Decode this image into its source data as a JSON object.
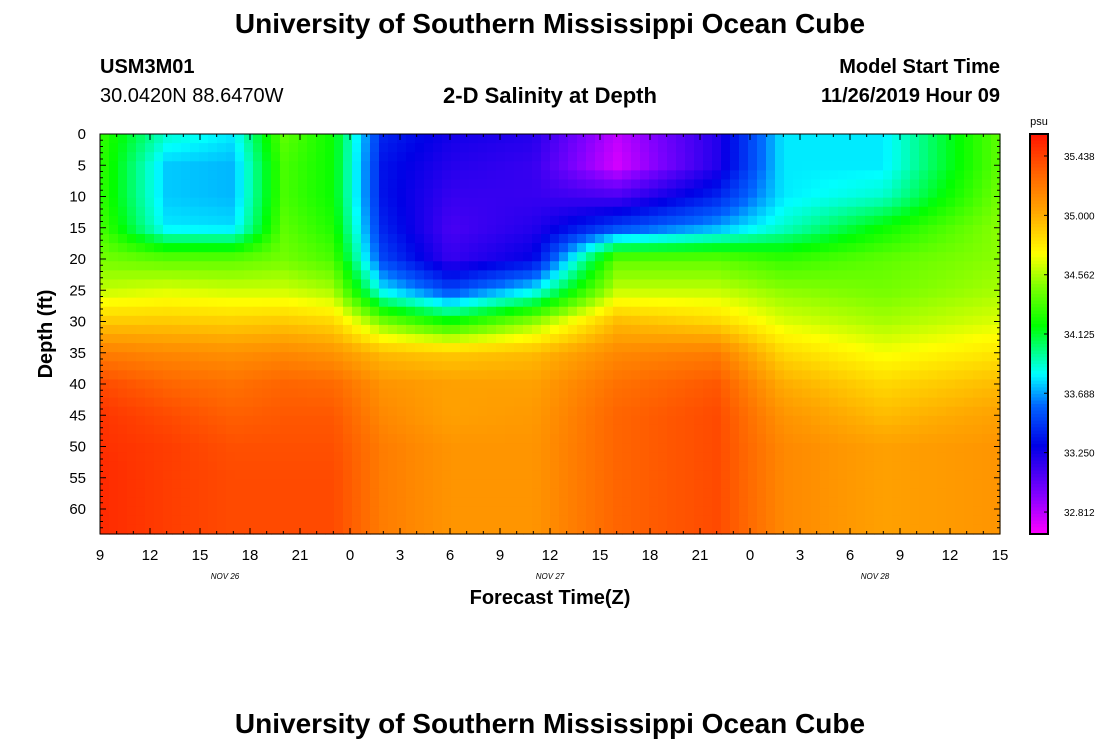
{
  "page": {
    "title_top": "University of Southern Mississippi Ocean Cube",
    "title_bottom": "University of Southern Mississippi Ocean Cube",
    "station_id": "USM3M01",
    "station_coords": "30.0420N 88.6470W",
    "subtitle": "2-D Salinity at Depth",
    "model_start_label": "Model Start Time",
    "model_start_value": "11/26/2019 Hour 09"
  },
  "chart_data": {
    "type": "heatmap",
    "title": "2-D Salinity at Depth",
    "xlabel": "Forecast Time(Z)",
    "ylabel": "Depth (ft)",
    "x_range_hours": [
      0,
      54
    ],
    "y_range_ft": [
      0,
      64
    ],
    "y_inverted": true,
    "x_tick_labels": [
      "9",
      "12",
      "15",
      "18",
      "21",
      "0",
      "3",
      "6",
      "9",
      "12",
      "15",
      "18",
      "21",
      "0",
      "3",
      "6",
      "9",
      "12",
      "15"
    ],
    "y_tick_labels": [
      "0",
      "5",
      "10",
      "15",
      "20",
      "25",
      "30",
      "35",
      "40",
      "45",
      "50",
      "55",
      "60"
    ],
    "date_labels": [
      {
        "text": "NOV 26",
        "hour": 7.5
      },
      {
        "text": "NOV 27",
        "hour": 27
      },
      {
        "text": "NOV 28",
        "hour": 46.5
      }
    ],
    "colorbar": {
      "unit": "psu",
      "min": 32.65,
      "max": 35.6,
      "tick_labels": [
        "35.438",
        "35.000",
        "34.562",
        "34.125",
        "33.688",
        "33.250",
        "32.812"
      ],
      "tick_values": [
        35.438,
        35.0,
        34.562,
        34.125,
        33.688,
        33.25,
        32.812
      ]
    },
    "depths_ft": [
      0,
      5,
      10,
      15,
      20,
      25,
      30,
      35,
      40,
      45,
      50,
      55,
      60,
      64
    ],
    "columns": [
      {
        "hour": 0,
        "salinity": [
          34.3,
          34.3,
          34.3,
          34.35,
          34.45,
          34.6,
          34.9,
          35.2,
          35.4,
          35.48,
          35.5,
          35.52,
          35.52,
          35.52
        ]
      },
      {
        "hour": 4,
        "salinity": [
          33.9,
          33.75,
          33.75,
          33.8,
          34.4,
          34.65,
          34.9,
          35.15,
          35.3,
          35.4,
          35.45,
          35.45,
          35.45,
          35.45
        ]
      },
      {
        "hour": 8,
        "salinity": [
          33.8,
          33.72,
          33.72,
          33.78,
          34.4,
          34.62,
          34.88,
          35.12,
          35.25,
          35.32,
          35.38,
          35.4,
          35.4,
          35.4
        ]
      },
      {
        "hour": 11,
        "salinity": [
          34.4,
          34.35,
          34.35,
          34.4,
          34.45,
          34.62,
          34.9,
          35.15,
          35.3,
          35.35,
          35.38,
          35.4,
          35.4,
          35.4
        ]
      },
      {
        "hour": 14,
        "salinity": [
          34.2,
          34.2,
          34.2,
          34.25,
          34.35,
          34.55,
          34.85,
          35.1,
          35.28,
          35.35,
          35.38,
          35.4,
          35.4,
          35.4
        ]
      },
      {
        "hour": 17,
        "salinity": [
          33.4,
          33.35,
          33.35,
          33.4,
          33.5,
          33.8,
          34.45,
          34.95,
          35.1,
          35.15,
          35.2,
          35.2,
          35.2,
          35.2
        ]
      },
      {
        "hour": 21,
        "salinity": [
          33.25,
          33.2,
          33.15,
          33.1,
          33.15,
          33.5,
          34.2,
          34.9,
          35.05,
          35.05,
          35.1,
          35.1,
          35.1,
          35.1
        ]
      },
      {
        "hour": 26,
        "salinity": [
          33.2,
          33.15,
          33.15,
          33.2,
          33.3,
          33.8,
          34.5,
          34.95,
          35.05,
          35.08,
          35.1,
          35.1,
          35.1,
          35.1
        ]
      },
      {
        "hour": 31,
        "salinity": [
          32.8,
          32.75,
          33.1,
          33.5,
          34.4,
          34.6,
          34.95,
          35.15,
          35.25,
          35.3,
          35.3,
          35.3,
          35.3,
          35.3
        ]
      },
      {
        "hour": 37,
        "salinity": [
          33.2,
          33.2,
          33.4,
          33.7,
          34.4,
          34.6,
          34.85,
          35.2,
          35.35,
          35.4,
          35.4,
          35.4,
          35.4,
          35.4
        ]
      },
      {
        "hour": 41,
        "salinity": [
          33.8,
          33.8,
          33.8,
          33.9,
          34.3,
          34.5,
          34.65,
          34.85,
          35.0,
          35.1,
          35.15,
          35.15,
          35.15,
          35.15
        ]
      },
      {
        "hour": 47,
        "salinity": [
          33.8,
          33.8,
          33.9,
          34.2,
          34.4,
          34.45,
          34.55,
          34.7,
          34.85,
          34.95,
          35.05,
          35.05,
          35.05,
          35.05
        ]
      },
      {
        "hour": 54,
        "salinity": [
          34.4,
          34.4,
          34.45,
          34.5,
          34.5,
          34.55,
          34.65,
          34.8,
          34.95,
          35.05,
          35.1,
          35.1,
          35.1,
          35.1
        ]
      }
    ]
  }
}
